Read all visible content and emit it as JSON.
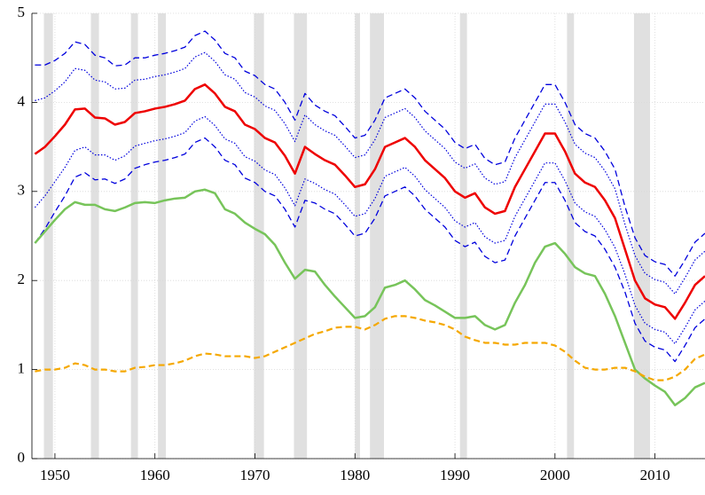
{
  "chart_data": {
    "type": "line",
    "xlim": [
      1947.7,
      2015
    ],
    "ylim": [
      0,
      5
    ],
    "xticks": [
      1950,
      1960,
      1970,
      1980,
      1990,
      2000,
      2010
    ],
    "yticks": [
      0,
      1,
      2,
      3,
      4,
      5
    ],
    "grid": true,
    "recession_color": "#e0e0e0",
    "recessions": [
      [
        1948.9,
        1949.8
      ],
      [
        1953.6,
        1954.4
      ],
      [
        1957.6,
        1958.3
      ],
      [
        1960.3,
        1961.1
      ],
      [
        1969.9,
        1970.9
      ],
      [
        1973.9,
        1975.2
      ],
      [
        1980.0,
        1980.5
      ],
      [
        1981.5,
        1982.9
      ],
      [
        1990.5,
        1991.2
      ],
      [
        2001.2,
        2001.9
      ],
      [
        2007.9,
        2009.5
      ]
    ],
    "x": [
      1948,
      1949,
      1950,
      1951,
      1952,
      1953,
      1954,
      1955,
      1956,
      1957,
      1958,
      1959,
      1960,
      1961,
      1962,
      1963,
      1964,
      1965,
      1966,
      1967,
      1968,
      1969,
      1970,
      1971,
      1972,
      1973,
      1974,
      1975,
      1976,
      1977,
      1978,
      1979,
      1980,
      1981,
      1982,
      1983,
      1984,
      1985,
      1986,
      1987,
      1988,
      1989,
      1990,
      1991,
      1992,
      1993,
      1994,
      1995,
      1996,
      1997,
      1998,
      1999,
      2000,
      2001,
      2002,
      2003,
      2004,
      2005,
      2006,
      2007,
      2008,
      2009,
      2010,
      2011,
      2012,
      2013,
      2014,
      2015
    ],
    "series": [
      {
        "color": "#0000dd",
        "dash": "dashed",
        "width": 1.3,
        "values": [
          4.42,
          4.42,
          4.47,
          4.55,
          4.68,
          4.65,
          4.53,
          4.5,
          4.41,
          4.42,
          4.5,
          4.5,
          4.53,
          4.55,
          4.58,
          4.62,
          4.75,
          4.8,
          4.7,
          4.55,
          4.5,
          4.35,
          4.3,
          4.2,
          4.15,
          4.0,
          3.8,
          4.1,
          3.97,
          3.9,
          3.85,
          3.73,
          3.6,
          3.63,
          3.8,
          4.05,
          4.1,
          4.15,
          4.05,
          3.9,
          3.8,
          3.7,
          3.55,
          3.48,
          3.53,
          3.37,
          3.3,
          3.33,
          3.6,
          3.8,
          4.0,
          4.2,
          4.2,
          4.0,
          3.75,
          3.65,
          3.6,
          3.45,
          3.25,
          2.83,
          2.48,
          2.28,
          2.21,
          2.18,
          2.05,
          2.23,
          2.43,
          2.53
        ]
      },
      {
        "color": "#0000dd",
        "dash": "dotted",
        "width": 1.2,
        "values": [
          4.02,
          4.05,
          4.13,
          4.23,
          4.38,
          4.36,
          4.25,
          4.23,
          4.15,
          4.16,
          4.25,
          4.26,
          4.29,
          4.31,
          4.34,
          4.38,
          4.51,
          4.56,
          4.46,
          4.31,
          4.26,
          4.11,
          4.06,
          3.96,
          3.91,
          3.76,
          3.56,
          3.86,
          3.75,
          3.68,
          3.63,
          3.51,
          3.38,
          3.41,
          3.58,
          3.83,
          3.88,
          3.93,
          3.83,
          3.68,
          3.58,
          3.48,
          3.33,
          3.26,
          3.31,
          3.15,
          3.08,
          3.11,
          3.38,
          3.58,
          3.78,
          3.98,
          3.98,
          3.78,
          3.53,
          3.43,
          3.38,
          3.23,
          3.03,
          2.63,
          2.28,
          2.08,
          2.01,
          1.98,
          1.85,
          2.03,
          2.23,
          2.33
        ]
      },
      {
        "color": "#ee0000",
        "dash": "solid",
        "width": 2.5,
        "values": [
          3.42,
          3.5,
          3.62,
          3.75,
          3.92,
          3.93,
          3.83,
          3.82,
          3.75,
          3.78,
          3.88,
          3.9,
          3.93,
          3.95,
          3.98,
          4.02,
          4.15,
          4.2,
          4.1,
          3.95,
          3.9,
          3.75,
          3.7,
          3.6,
          3.55,
          3.4,
          3.2,
          3.5,
          3.42,
          3.35,
          3.3,
          3.18,
          3.05,
          3.08,
          3.25,
          3.5,
          3.55,
          3.6,
          3.5,
          3.35,
          3.25,
          3.15,
          3.0,
          2.93,
          2.98,
          2.82,
          2.75,
          2.78,
          3.05,
          3.25,
          3.45,
          3.65,
          3.65,
          3.45,
          3.2,
          3.1,
          3.05,
          2.9,
          2.7,
          2.35,
          2.0,
          1.8,
          1.73,
          1.7,
          1.57,
          1.75,
          1.95,
          2.05
        ]
      },
      {
        "color": "#0000dd",
        "dash": "dotted",
        "width": 1.2,
        "values": [
          2.82,
          2.95,
          3.11,
          3.27,
          3.46,
          3.5,
          3.41,
          3.41,
          3.35,
          3.4,
          3.51,
          3.54,
          3.57,
          3.59,
          3.62,
          3.66,
          3.79,
          3.84,
          3.74,
          3.59,
          3.54,
          3.39,
          3.34,
          3.24,
          3.19,
          3.04,
          2.84,
          3.14,
          3.09,
          3.02,
          2.97,
          2.85,
          2.72,
          2.75,
          2.92,
          3.17,
          3.22,
          3.27,
          3.17,
          3.02,
          2.92,
          2.82,
          2.67,
          2.6,
          2.65,
          2.49,
          2.42,
          2.45,
          2.72,
          2.92,
          3.12,
          3.32,
          3.32,
          3.12,
          2.87,
          2.77,
          2.72,
          2.57,
          2.37,
          2.07,
          1.72,
          1.52,
          1.45,
          1.42,
          1.29,
          1.47,
          1.67,
          1.77
        ]
      },
      {
        "color": "#0000dd",
        "dash": "dashed",
        "width": 1.3,
        "values": [
          2.42,
          2.58,
          2.77,
          2.95,
          3.16,
          3.21,
          3.13,
          3.14,
          3.09,
          3.14,
          3.26,
          3.3,
          3.33,
          3.35,
          3.38,
          3.42,
          3.55,
          3.6,
          3.5,
          3.35,
          3.3,
          3.15,
          3.1,
          3.0,
          2.95,
          2.8,
          2.6,
          2.9,
          2.87,
          2.8,
          2.75,
          2.63,
          2.5,
          2.53,
          2.7,
          2.95,
          3.0,
          3.05,
          2.95,
          2.8,
          2.7,
          2.6,
          2.45,
          2.38,
          2.43,
          2.27,
          2.2,
          2.23,
          2.5,
          2.7,
          2.9,
          3.1,
          3.1,
          2.9,
          2.65,
          2.55,
          2.5,
          2.35,
          2.15,
          1.87,
          1.52,
          1.32,
          1.25,
          1.22,
          1.09,
          1.27,
          1.47,
          1.57
        ]
      },
      {
        "color": "#77c45a",
        "dash": "solid",
        "width": 2.5,
        "values": [
          2.42,
          2.55,
          2.68,
          2.8,
          2.88,
          2.85,
          2.85,
          2.8,
          2.78,
          2.82,
          2.87,
          2.88,
          2.87,
          2.9,
          2.92,
          2.93,
          3.0,
          3.02,
          2.98,
          2.8,
          2.75,
          2.65,
          2.58,
          2.52,
          2.4,
          2.2,
          2.02,
          2.12,
          2.1,
          1.95,
          1.82,
          1.7,
          1.58,
          1.6,
          1.7,
          1.92,
          1.95,
          2.0,
          1.9,
          1.78,
          1.72,
          1.65,
          1.58,
          1.58,
          1.6,
          1.5,
          1.45,
          1.5,
          1.75,
          1.95,
          2.2,
          2.38,
          2.42,
          2.3,
          2.15,
          2.08,
          2.05,
          1.85,
          1.6,
          1.3,
          1.0,
          0.9,
          0.82,
          0.75,
          0.6,
          0.68,
          0.8,
          0.85
        ]
      },
      {
        "color": "#f5a800",
        "dash": "dashed",
        "width": 2.2,
        "values": [
          0.98,
          1.0,
          1.0,
          1.02,
          1.07,
          1.05,
          1.0,
          1.0,
          0.98,
          0.98,
          1.02,
          1.03,
          1.05,
          1.05,
          1.07,
          1.1,
          1.15,
          1.18,
          1.17,
          1.15,
          1.15,
          1.15,
          1.13,
          1.15,
          1.2,
          1.25,
          1.3,
          1.35,
          1.4,
          1.43,
          1.47,
          1.48,
          1.48,
          1.45,
          1.5,
          1.57,
          1.6,
          1.6,
          1.58,
          1.55,
          1.53,
          1.5,
          1.45,
          1.37,
          1.33,
          1.3,
          1.3,
          1.28,
          1.28,
          1.3,
          1.3,
          1.3,
          1.27,
          1.2,
          1.1,
          1.02,
          1.0,
          1.0,
          1.02,
          1.02,
          0.98,
          0.92,
          0.88,
          0.88,
          0.92,
          1.0,
          1.12,
          1.17
        ]
      }
    ]
  }
}
